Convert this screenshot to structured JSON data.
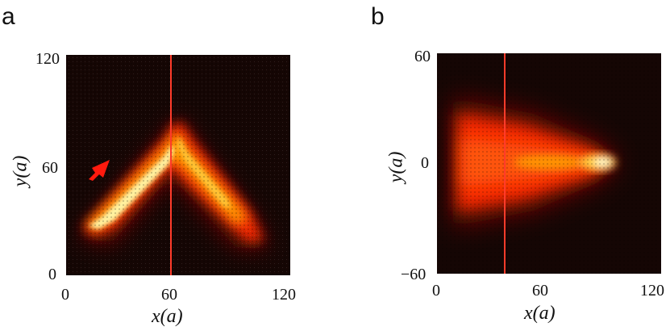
{
  "figure": {
    "panels": [
      {
        "label": "a",
        "x_ticks": [
          "0",
          "60",
          "120"
        ],
        "y_ticks": [
          "0",
          "60",
          "120"
        ],
        "xlabel": "x(a)",
        "ylabel": "y(a)",
        "x_range": [
          0,
          120
        ],
        "y_range": [
          0,
          120
        ],
        "interface_x": 60,
        "arrow_color": "#ff1a0e"
      },
      {
        "label": "b",
        "x_ticks": [
          "0",
          "60",
          "120"
        ],
        "y_ticks": [
          "−60",
          "0",
          "60"
        ],
        "xlabel": "x(a)",
        "ylabel": "y(a)",
        "x_range": [
          0,
          120
        ],
        "y_range": [
          -60,
          60
        ],
        "interface_x": 40
      }
    ],
    "colors": {
      "background": "#150604",
      "interface_line": "#ff3b2a",
      "beam_core": "#fff2a0",
      "beam_mid": "#ffb400",
      "beam_outer": "#ff2a00"
    }
  }
}
